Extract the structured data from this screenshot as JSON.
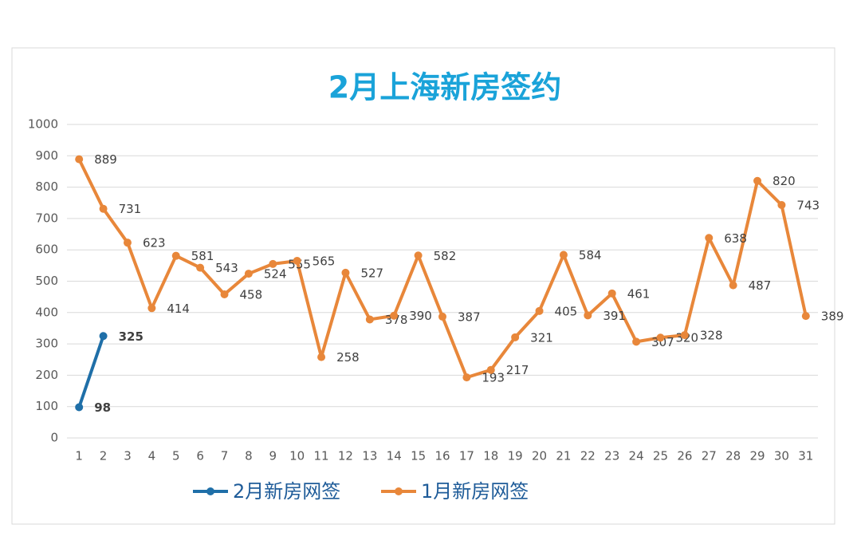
{
  "chart_data": {
    "type": "line",
    "title": "2月上海新房签约",
    "title_color": "#1aa3d9",
    "categories": [
      "1",
      "2",
      "3",
      "4",
      "5",
      "6",
      "7",
      "8",
      "9",
      "10",
      "11",
      "12",
      "13",
      "14",
      "15",
      "16",
      "17",
      "18",
      "19",
      "20",
      "21",
      "22",
      "23",
      "24",
      "25",
      "26",
      "27",
      "28",
      "29",
      "30",
      "31"
    ],
    "series": [
      {
        "name": "2月新房网签",
        "color": "#1f6fa8",
        "label_color": "#1a9c50",
        "values": [
          98,
          325,
          null,
          null,
          null,
          null,
          null,
          null,
          null,
          null,
          null,
          null,
          null,
          null,
          null,
          null,
          null,
          null,
          null,
          null,
          null,
          null,
          null,
          null,
          null,
          null,
          null,
          null,
          null,
          null,
          null
        ]
      },
      {
        "name": "1月新房网签",
        "color": "#e8873a",
        "label_color": "#404040",
        "values": [
          889,
          731,
          623,
          414,
          581,
          543,
          458,
          524,
          555,
          565,
          258,
          527,
          378,
          390,
          582,
          387,
          193,
          217,
          321,
          405,
          584,
          391,
          461,
          307,
          320,
          328,
          638,
          487,
          820,
          743,
          389
        ]
      }
    ],
    "ylim": [
      0,
      1000
    ],
    "yticks": [
      0,
      100,
      200,
      300,
      400,
      500,
      600,
      700,
      800,
      900,
      1000
    ],
    "grid": true,
    "legend": "bottom"
  }
}
